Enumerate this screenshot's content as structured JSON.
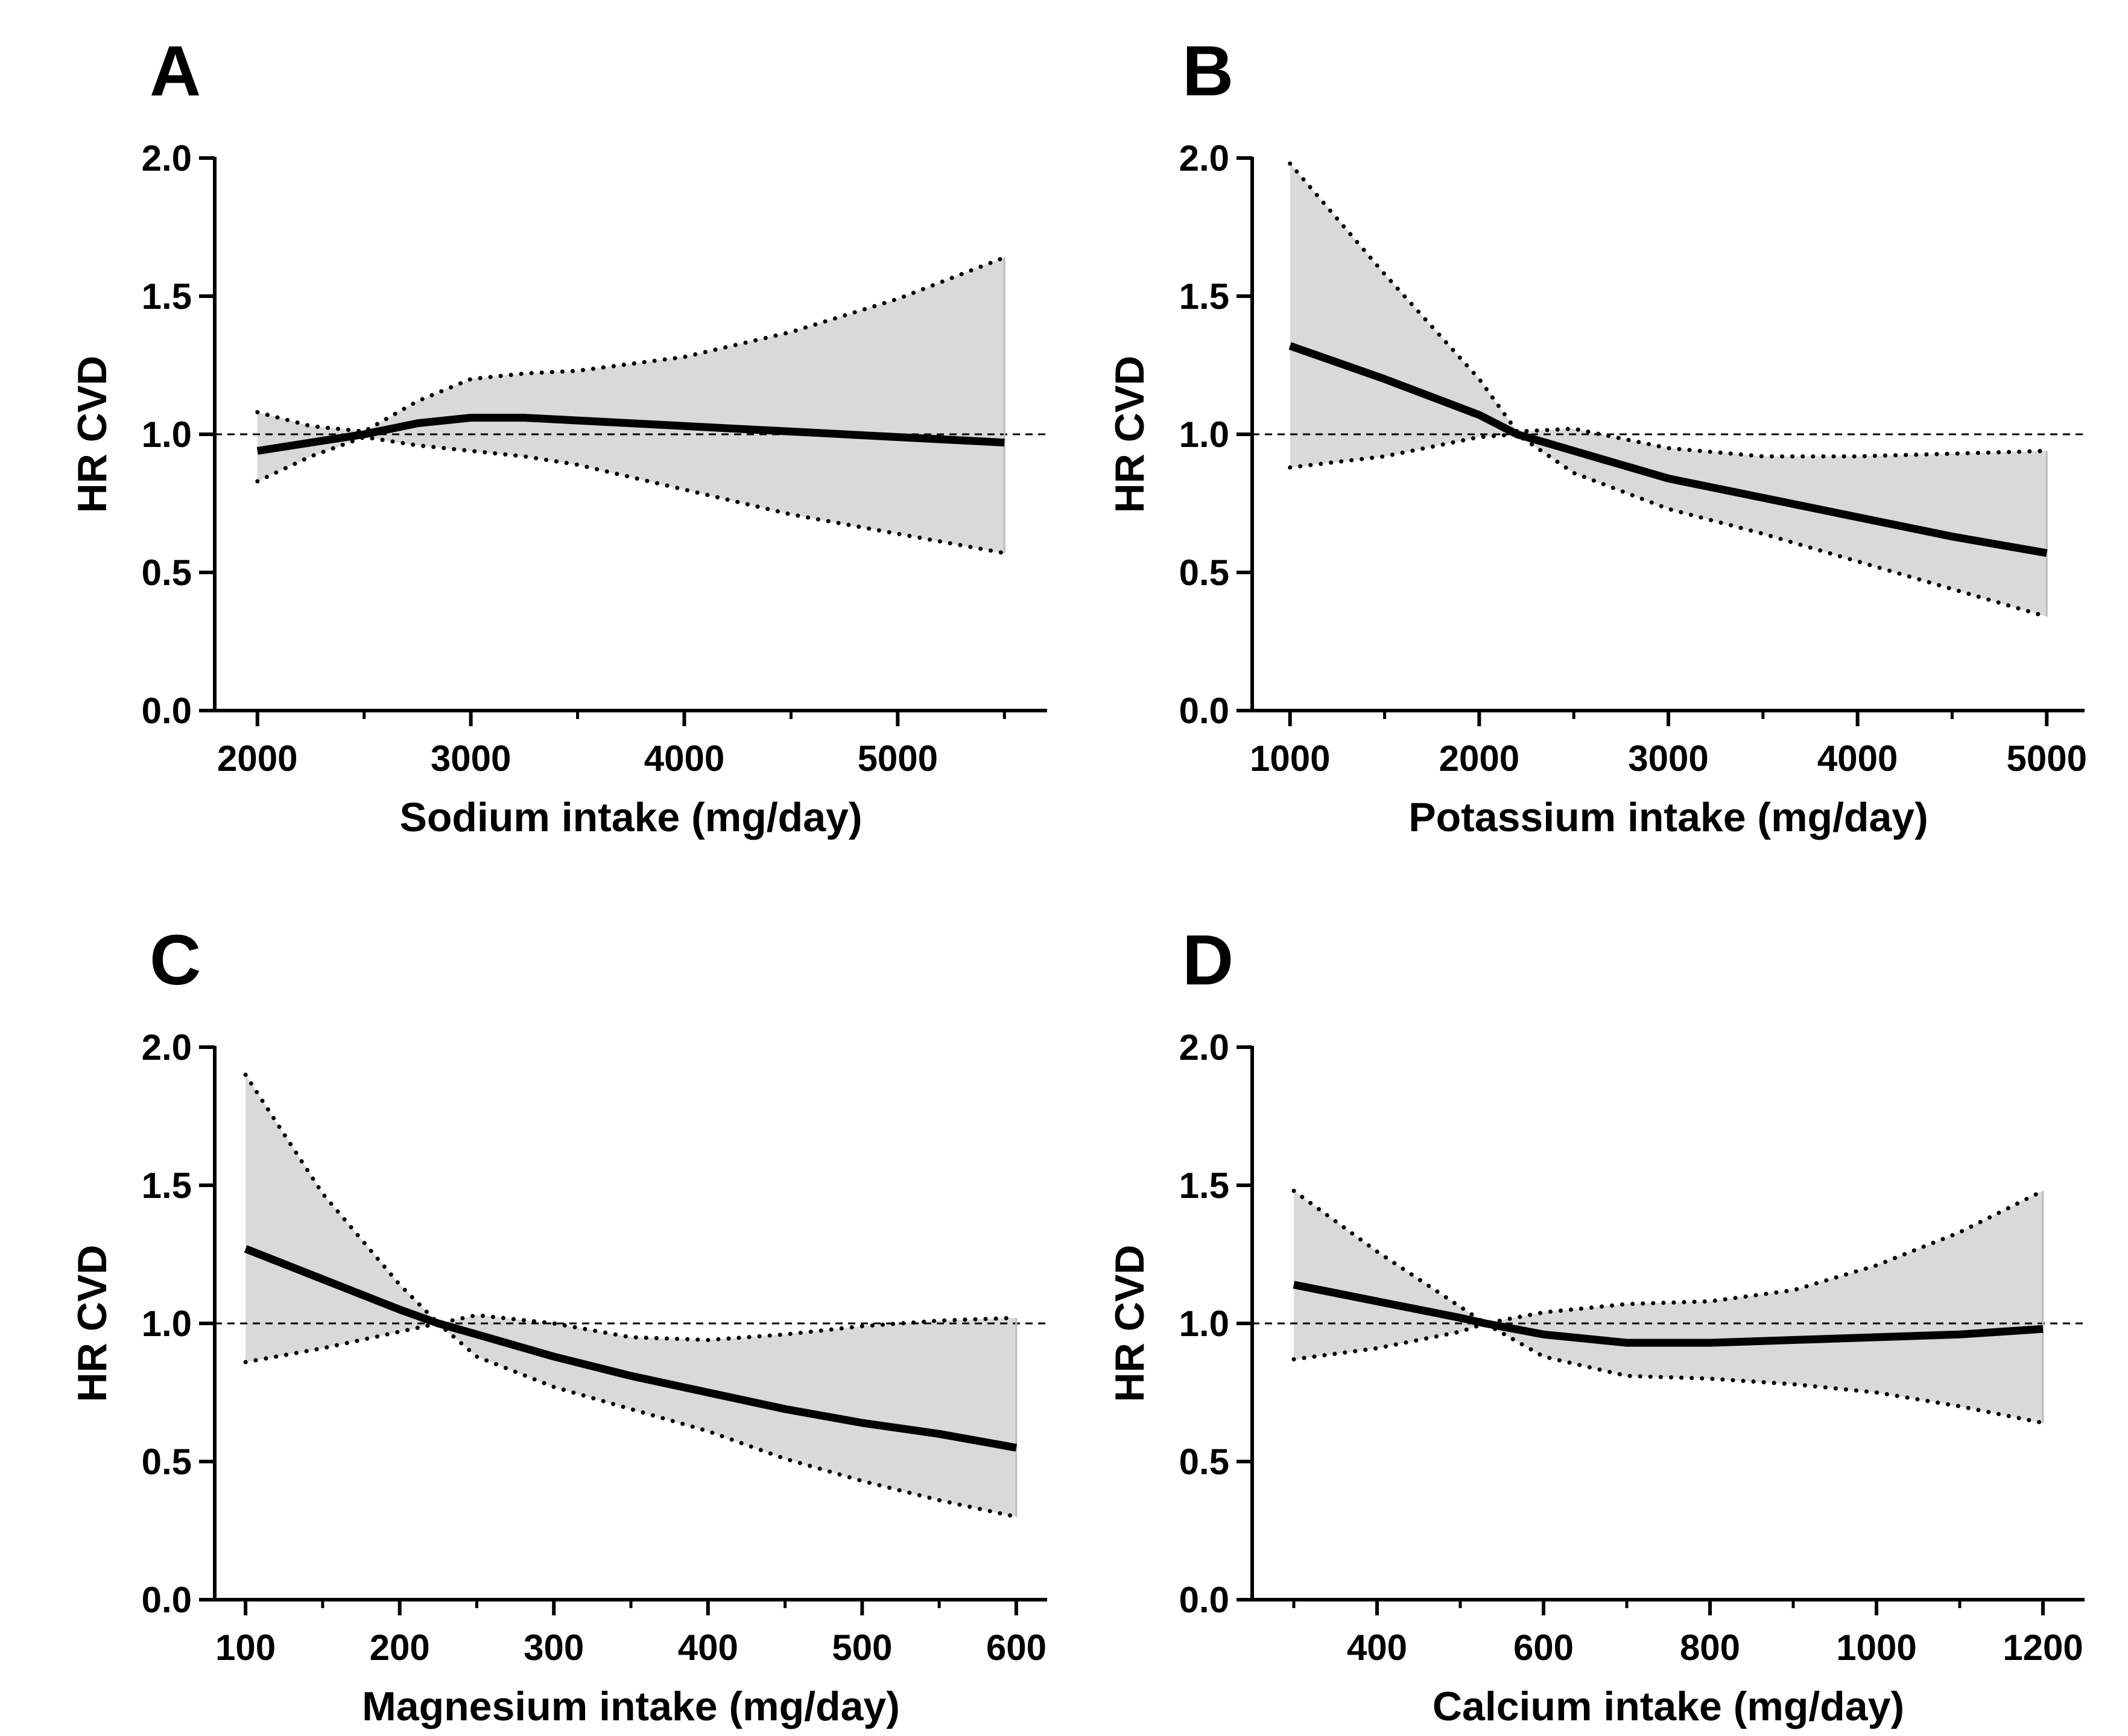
{
  "figure": {
    "panels": [
      {
        "id": "A",
        "letter": "A"
      },
      {
        "id": "B",
        "letter": "B"
      },
      {
        "id": "C",
        "letter": "C"
      },
      {
        "id": "D",
        "letter": "D"
      }
    ]
  },
  "colors": {
    "ci_fill": "#d9d9d9",
    "line": "#000000",
    "reference_line": "#000000",
    "background": "#ffffff"
  },
  "chart_data": [
    {
      "panel": "A",
      "type": "line",
      "title": "",
      "xlabel": "Sodium intake (mg/day)",
      "ylabel": "HR CVD",
      "xlim": [
        1800,
        5700
      ],
      "ylim": [
        0,
        2.0
      ],
      "xticks": [
        2000,
        3000,
        4000,
        5000
      ],
      "xticks_minor": [
        2500,
        3500,
        4500,
        5500
      ],
      "yticks": [
        0.0,
        0.5,
        1.0,
        1.5,
        2.0
      ],
      "ytick_labels": [
        "0.0",
        "0.5",
        "1.0",
        "1.5",
        "2.0"
      ],
      "reference_line": 1.0,
      "series": [
        {
          "role": "estimate",
          "x": [
            2000,
            2250,
            2500,
            2750,
            3000,
            3250,
            3500,
            4000,
            4500,
            5000,
            5500
          ],
          "y": [
            0.94,
            0.97,
            1.0,
            1.04,
            1.06,
            1.06,
            1.05,
            1.03,
            1.01,
            0.99,
            0.97
          ]
        },
        {
          "role": "ci_upper",
          "x": [
            2000,
            2250,
            2500,
            2750,
            3000,
            3250,
            3500,
            4000,
            4500,
            5000,
            5500
          ],
          "y": [
            1.08,
            1.03,
            1.01,
            1.12,
            1.2,
            1.22,
            1.23,
            1.28,
            1.37,
            1.49,
            1.64
          ]
        },
        {
          "role": "ci_lower",
          "x": [
            2000,
            2250,
            2500,
            2750,
            3000,
            3250,
            3500,
            4000,
            4500,
            5000,
            5500
          ],
          "y": [
            0.83,
            0.92,
            0.99,
            0.96,
            0.94,
            0.92,
            0.89,
            0.8,
            0.71,
            0.64,
            0.57
          ]
        }
      ]
    },
    {
      "panel": "B",
      "type": "line",
      "title": "",
      "xlabel": "Potassium intake (mg/day)",
      "ylabel": "HR CVD",
      "xlim": [
        800,
        5200
      ],
      "ylim": [
        0,
        2.0
      ],
      "xticks": [
        1000,
        2000,
        3000,
        4000,
        5000
      ],
      "xticks_minor": [
        1500,
        2500,
        3500,
        4500
      ],
      "yticks": [
        0.0,
        0.5,
        1.0,
        1.5,
        2.0
      ],
      "ytick_labels": [
        "0.0",
        "0.5",
        "1.0",
        "1.5",
        "2.0"
      ],
      "reference_line": 1.0,
      "series": [
        {
          "role": "estimate",
          "x": [
            1000,
            1500,
            2000,
            2200,
            2500,
            3000,
            3500,
            4000,
            4500,
            5000
          ],
          "y": [
            1.32,
            1.2,
            1.07,
            1.0,
            0.94,
            0.84,
            0.77,
            0.7,
            0.63,
            0.57
          ]
        },
        {
          "role": "ci_upper",
          "x": [
            1000,
            1500,
            2000,
            2200,
            2500,
            3000,
            3500,
            4000,
            4500,
            5000
          ],
          "y": [
            1.98,
            1.58,
            1.2,
            1.01,
            1.02,
            0.95,
            0.92,
            0.92,
            0.93,
            0.94
          ]
        },
        {
          "role": "ci_lower",
          "x": [
            1000,
            1500,
            2000,
            2200,
            2500,
            3000,
            3500,
            4000,
            4500,
            5000
          ],
          "y": [
            0.88,
            0.92,
            0.99,
            1.0,
            0.86,
            0.73,
            0.64,
            0.54,
            0.44,
            0.34
          ]
        }
      ]
    },
    {
      "panel": "C",
      "type": "line",
      "title": "",
      "xlabel": "Magnesium intake (mg/day)",
      "ylabel": "HR CVD",
      "xlim": [
        80,
        620
      ],
      "ylim": [
        0,
        2.0
      ],
      "xticks": [
        100,
        200,
        300,
        400,
        500,
        600
      ],
      "xticks_minor": [
        150,
        250,
        350,
        450,
        550
      ],
      "yticks": [
        0.0,
        0.5,
        1.0,
        1.5,
        2.0
      ],
      "ytick_labels": [
        "0.0",
        "0.5",
        "1.0",
        "1.5",
        "2.0"
      ],
      "reference_line": 1.0,
      "series": [
        {
          "role": "estimate",
          "x": [
            100,
            150,
            200,
            225,
            250,
            300,
            350,
            400,
            450,
            500,
            550,
            600
          ],
          "y": [
            1.27,
            1.16,
            1.05,
            1.0,
            0.96,
            0.88,
            0.81,
            0.75,
            0.69,
            0.64,
            0.6,
            0.55
          ]
        },
        {
          "role": "ci_upper",
          "x": [
            100,
            150,
            200,
            225,
            250,
            300,
            350,
            400,
            450,
            500,
            550,
            600
          ],
          "y": [
            1.9,
            1.47,
            1.14,
            1.0,
            1.03,
            1.0,
            0.95,
            0.94,
            0.96,
            0.99,
            1.01,
            1.02
          ]
        },
        {
          "role": "ci_lower",
          "x": [
            100,
            150,
            200,
            225,
            250,
            300,
            350,
            400,
            450,
            500,
            550,
            600
          ],
          "y": [
            0.86,
            0.91,
            0.97,
            1.0,
            0.88,
            0.77,
            0.69,
            0.61,
            0.51,
            0.43,
            0.36,
            0.3
          ]
        }
      ]
    },
    {
      "panel": "D",
      "type": "line",
      "title": "",
      "xlabel": "Calcium intake (mg/day)",
      "ylabel": "HR CVD",
      "xlim": [
        250,
        1250
      ],
      "ylim": [
        0,
        2.0
      ],
      "xticks": [
        400,
        600,
        800,
        1000,
        1200
      ],
      "xticks_minor": [
        300,
        500,
        700,
        900,
        1100
      ],
      "yticks": [
        0.0,
        0.5,
        1.0,
        1.5,
        2.0
      ],
      "ytick_labels": [
        "0.0",
        "0.5",
        "1.0",
        "1.5",
        "2.0"
      ],
      "reference_line": 1.0,
      "series": [
        {
          "role": "estimate",
          "x": [
            300,
            400,
            500,
            530,
            600,
            700,
            800,
            900,
            1000,
            1100,
            1200
          ],
          "y": [
            1.14,
            1.08,
            1.02,
            1.0,
            0.96,
            0.93,
            0.93,
            0.94,
            0.95,
            0.96,
            0.98
          ]
        },
        {
          "role": "ci_upper",
          "x": [
            300,
            400,
            500,
            530,
            600,
            700,
            800,
            900,
            1000,
            1100,
            1200
          ],
          "y": [
            1.48,
            1.26,
            1.06,
            1.0,
            1.04,
            1.07,
            1.08,
            1.12,
            1.21,
            1.33,
            1.48
          ]
        },
        {
          "role": "ci_lower",
          "x": [
            300,
            400,
            500,
            530,
            600,
            700,
            800,
            900,
            1000,
            1100,
            1200
          ],
          "y": [
            0.87,
            0.91,
            0.97,
            1.0,
            0.88,
            0.81,
            0.8,
            0.78,
            0.75,
            0.7,
            0.64
          ]
        }
      ]
    }
  ]
}
